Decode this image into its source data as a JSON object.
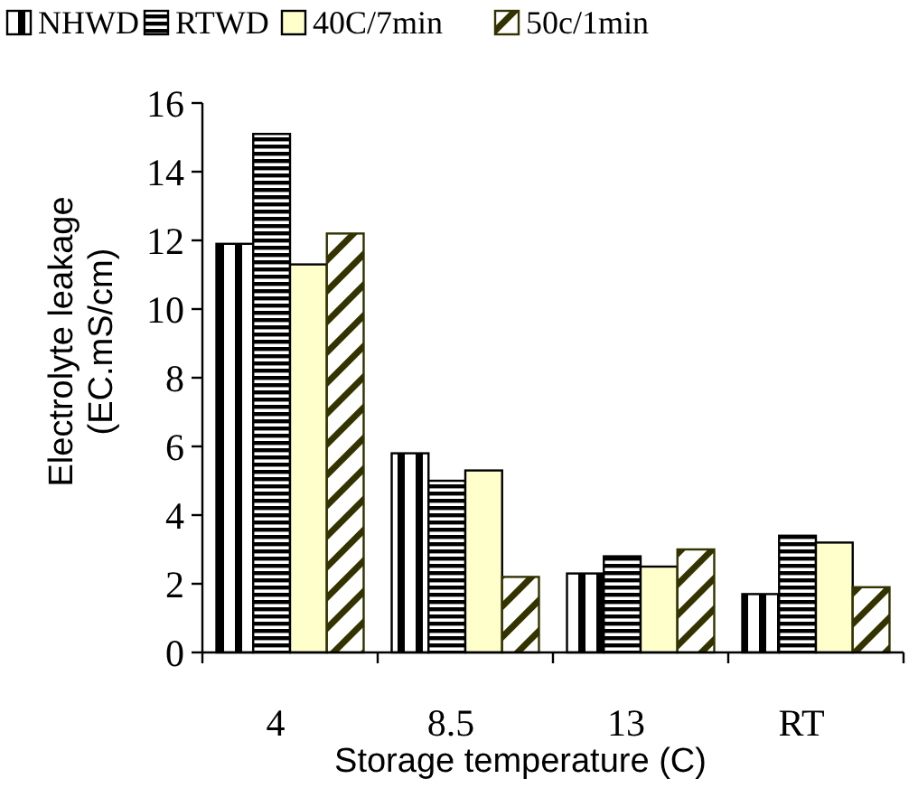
{
  "chart_data": {
    "type": "bar",
    "xlabel": "Storage temperature (C)",
    "ylabel": "Electrolyte leakage\n(EC.mS/cm)",
    "categories": [
      "4",
      "8.5",
      "13",
      "RT"
    ],
    "series": [
      {
        "name": "NHWD",
        "color": "#000000",
        "values": [
          11.9,
          5.8,
          2.3,
          1.7
        ]
      },
      {
        "name": "RTWD",
        "color": "#000000",
        "values": [
          15.1,
          5.0,
          2.8,
          3.4
        ]
      },
      {
        "name": "40C/7min",
        "color": "#ffffcc",
        "values": [
          11.3,
          5.3,
          2.5,
          3.2
        ]
      },
      {
        "name": "50c/1min",
        "color": "#333300",
        "values": [
          12.2,
          2.2,
          3.0,
          1.9
        ]
      }
    ],
    "ylim": [
      0,
      16
    ],
    "yticks": [
      0,
      2,
      4,
      6,
      8,
      10,
      12,
      14,
      16
    ],
    "grid": false,
    "legend": "top"
  }
}
